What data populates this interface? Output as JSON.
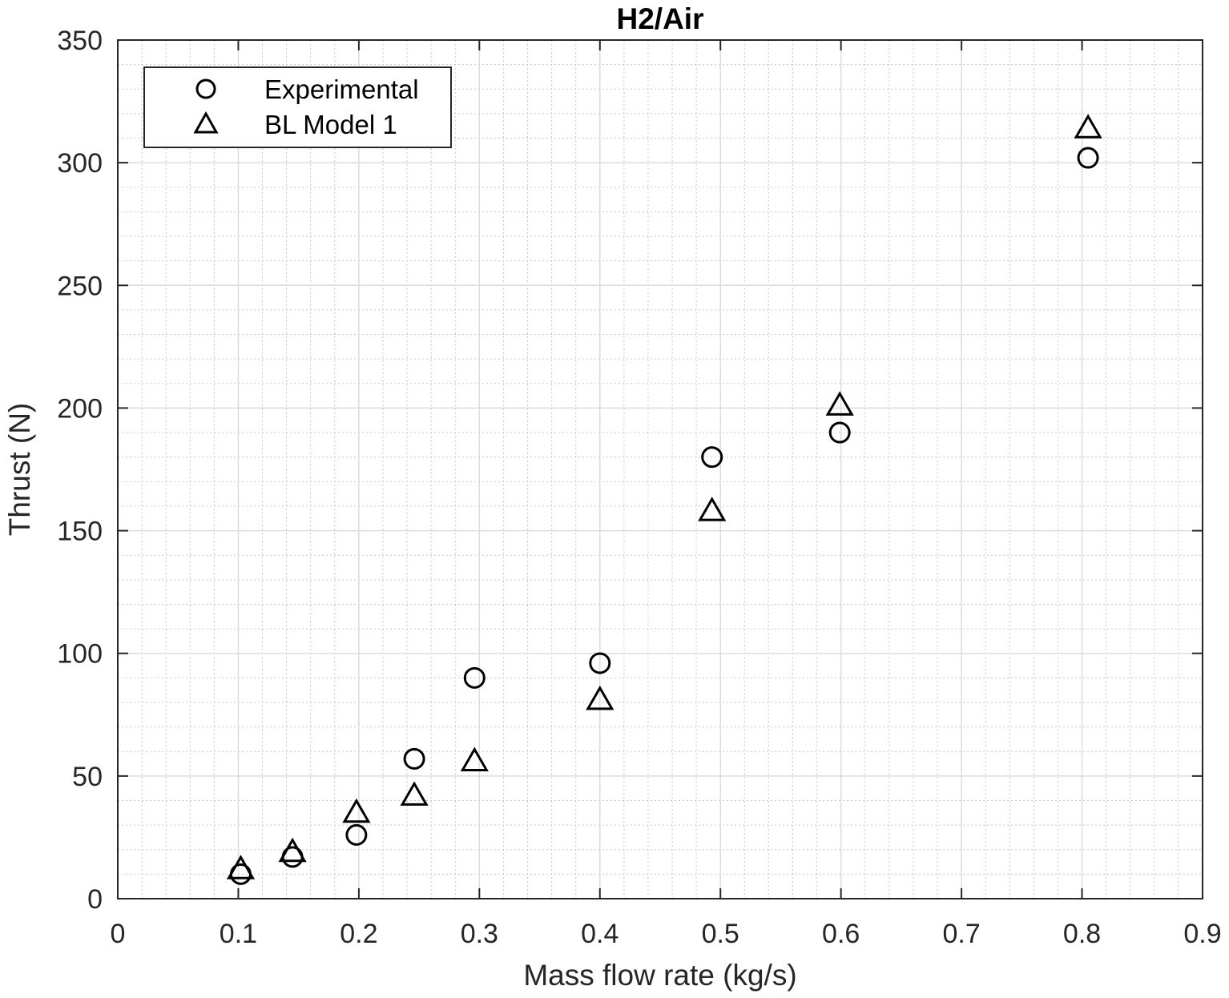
{
  "chart_data": {
    "type": "scatter",
    "title": "H2/Air",
    "xlabel": "Mass flow rate (kg/s)",
    "ylabel": "Thrust (N)",
    "xlim": [
      0,
      0.9
    ],
    "ylim": [
      0,
      350
    ],
    "xticks": [
      0,
      0.1,
      0.2,
      0.3,
      0.4,
      0.5,
      0.6,
      0.7,
      0.8,
      0.9
    ],
    "xtick_labels": [
      "0",
      "0.1",
      "0.2",
      "0.3",
      "0.4",
      "0.5",
      "0.6",
      "0.7",
      "0.8",
      "0.9"
    ],
    "yticks": [
      0,
      50,
      100,
      150,
      200,
      250,
      300,
      350
    ],
    "ytick_labels": [
      "0",
      "50",
      "100",
      "150",
      "200",
      "250",
      "300",
      "350"
    ],
    "grid": true,
    "minor_grid": true,
    "legend_position": "top-left",
    "series": [
      {
        "name": "Experimental",
        "marker": "circle",
        "x": [
          0.102,
          0.145,
          0.198,
          0.246,
          0.296,
          0.4,
          0.493,
          0.599,
          0.805
        ],
        "y": [
          10,
          17,
          26,
          57,
          90,
          96,
          180,
          190,
          302
        ]
      },
      {
        "name": "BL Model 1",
        "marker": "triangle",
        "x": [
          0.102,
          0.145,
          0.198,
          0.246,
          0.296,
          0.4,
          0.493,
          0.599,
          0.805
        ],
        "y": [
          12,
          19,
          35,
          42,
          56,
          81,
          158,
          201,
          314
        ]
      }
    ],
    "colors": {
      "marker": "#000000",
      "axis": "#262626",
      "grid": "#dcdcdc",
      "minor_grid": "#c8c8c8"
    }
  }
}
